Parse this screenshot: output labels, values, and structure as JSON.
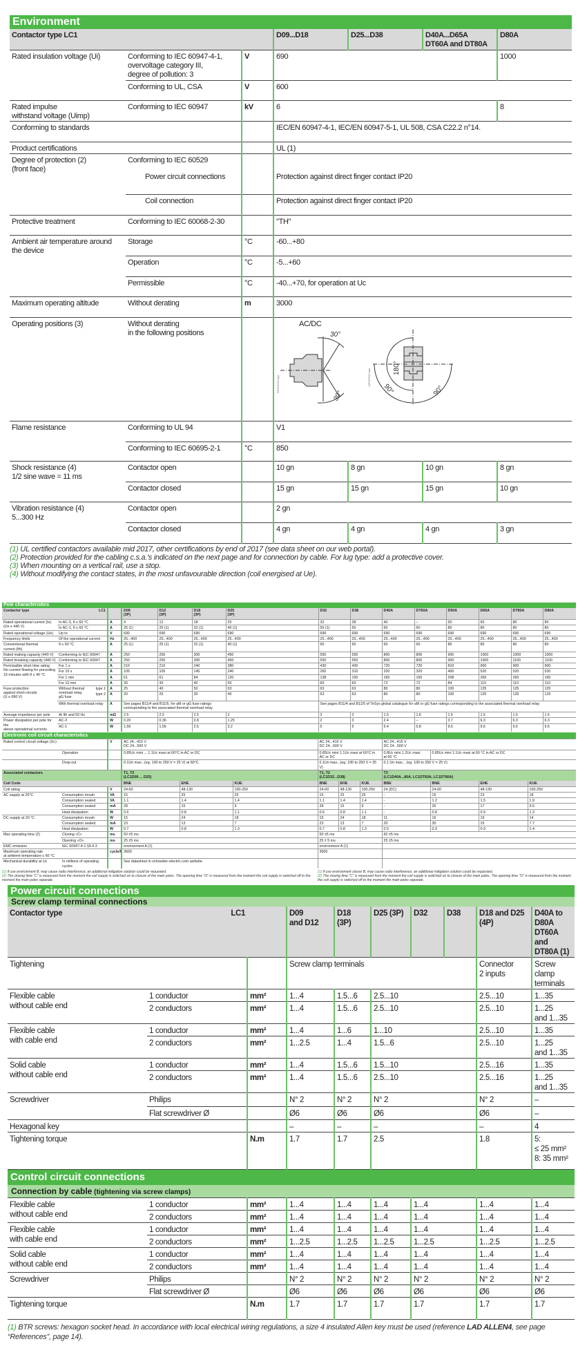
{
  "env": {
    "title": "Environment",
    "header": [
      [
        "Contactor type LC1",
        "D09...D18",
        "D25...D38",
        "D40A...D65A\nDT60A and DT80A",
        "D80A"
      ]
    ],
    "rows": [
      [
        "Rated insulation voltage (Ui)",
        "Conforming to IEC 60947-4-1,\novervoltage category III,\ndegree of pollution: 3",
        "V",
        "690",
        "1000"
      ],
      [
        "Conforming to UL, CSA",
        "V",
        "600"
      ],
      [
        "Rated impulse\nwithstand voltage (Uimp)",
        "Conforming to IEC 60947",
        "kV",
        "6",
        "8"
      ],
      [
        "Conforming to standards",
        "",
        "IEC/EN 60947-4-1, IEC/EN 60947-5-1, UL 508, CSA C22.2 n°14."
      ],
      [
        "Product certifications",
        "",
        "UL (1)"
      ],
      [
        "Degree of protection (2)\n(front face)",
        "Conforming to IEC 60529",
        "",
        ""
      ],
      [
        "Power circuit connections",
        "",
        "Protection against direct finger contact IP20"
      ],
      [
        "Coil connection",
        "",
        "Protection against direct finger contact IP20"
      ],
      [
        "Protective treatment",
        "Conforming to IEC 60068-2-30",
        "",
        "\"TH\""
      ],
      [
        "Ambient air temperature around\nthe device",
        "Storage",
        "°C",
        "-60...+80"
      ],
      [
        "Operation",
        "°C",
        "-5...+60"
      ],
      [
        "Permissible",
        "°C",
        "-40...+70, for operation at Uc"
      ],
      [
        "Maximum operating altitude",
        "Without derating",
        "m",
        "3000"
      ],
      [
        "Operating positions (3)",
        "Without derating\nin the following positions",
        "",
        "AC/DC"
      ],
      [
        "Flame resistance",
        "Conforming to UL 94",
        "",
        "V1"
      ],
      [
        "Conforming to IEC 60695-2-1",
        "°C",
        "850"
      ],
      [
        "Shock resistance (4)\n1/2 sine wave = 11 ms",
        "Contactor open",
        "",
        "10 gn",
        "8 gn",
        "10 gn",
        "8 gn"
      ],
      [
        "Contactor closed",
        "",
        "15 gn",
        "15 gn",
        "15 gn",
        "10 gn"
      ],
      [
        "Vibration resistance (4)\n5...300 Hz",
        "Contactor open",
        "",
        "2 gn"
      ],
      [
        "Contactor closed",
        "",
        "4 gn",
        "4 gn",
        "4 gn",
        "3 gn"
      ]
    ],
    "diagram": {
      "figure_ids": [
        "DF510743.eps",
        "DF537612.eps"
      ],
      "angles": [
        "30°",
        "30°",
        "180°",
        "90°",
        "90°"
      ]
    },
    "footnotes": [
      {
        "num": "(1)",
        "text": " UL certified contactors available mid 2017, other certifications by end of 2017 (see data sheet on our web portal)."
      },
      {
        "num": "(2)",
        "text": " Protection provided for the cabling c.s.a.'s indicated on the next page and for connection by cable. For lug type: add a protective cover."
      },
      {
        "num": "(3)",
        "text": " When mounting on a vertical rail, use a stop."
      },
      {
        "num": "(4)",
        "text": " Without modifying the contact states, in the most unfavourable direction (coil energised at Ue)."
      }
    ]
  },
  "pole": {
    "title": "Pole characteristics",
    "fuse_types": [
      "type 1",
      "type 2"
    ],
    "header": [
      [
        "Contactor type",
        "LC1",
        "",
        "D09\n(3P)",
        "D12\n(3P)",
        "D18\n(3P)",
        "D25\n(3P)",
        "D32",
        "D38",
        "D40A",
        "DT60A",
        "D50A",
        "D65A",
        "DT80A",
        "D80A"
      ]
    ],
    "rows": [
      [
        "Rated operational current (Ie)\n(Ue ≤ 440 V)",
        "In AC-3, θ ≤ 60 °C",
        "A",
        "9",
        "12",
        "18",
        "25",
        "32",
        "38",
        "40",
        "–",
        "50",
        "65",
        "80",
        "80"
      ],
      [
        "In AC-1, θ ≤ 60 °C",
        "A",
        "25 (1)",
        "25 (1)",
        "32 (1)",
        "40 (1)",
        "50 (1)",
        "50",
        "60",
        "60",
        "80",
        "80",
        "80",
        "80"
      ],
      [
        "Rated operational voltage (Ue)",
        "Up to",
        "V",
        "690",
        "690",
        "690",
        "690",
        "690",
        "690",
        "690",
        "690",
        "690",
        "690",
        "690",
        "690"
      ],
      [
        "Frequency limits",
        "Of the operational current",
        "Hz",
        "25...400",
        "25...400",
        "25...400",
        "25...400",
        "25...400",
        "25...400",
        "25...400",
        "25...400",
        "25...400",
        "25...400",
        "25...400",
        "25...400"
      ],
      [
        "Conventional thermal\ncurrent (Ith)",
        "θ ≤ 60 °C",
        "A",
        "25 (1)",
        "25 (1)",
        "32 (1)",
        "40 (1)",
        "50",
        "50",
        "60",
        "60",
        "80",
        "80",
        "80",
        "80"
      ],
      [
        "Rated making capacity (440 V)",
        "Conforming to IEC 60947",
        "A",
        "250",
        "250",
        "300",
        "450",
        "550",
        "550",
        "800",
        "800",
        "900",
        "1000",
        "1000",
        "1000"
      ],
      [
        "Rated breaking capacity (440 V)",
        "Conforming to IEC 60947",
        "A",
        "250",
        "250",
        "300",
        "450",
        "550",
        "550",
        "800",
        "800",
        "900",
        "1000",
        "1100",
        "1100"
      ],
      [
        "Permissible short time rating\nNo current flowing for preceding\n15 minutes with θ ≤ 40 °C",
        "For 1 s",
        "A",
        "210",
        "210",
        "240",
        "380",
        "430",
        "430",
        "720",
        "720",
        "810",
        "900",
        "900",
        "900"
      ],
      [
        "For 10 s",
        "A",
        "105",
        "105",
        "145",
        "240",
        "260",
        "310",
        "320",
        "320",
        "400",
        "520",
        "520",
        "520"
      ],
      [
        "For 1 min",
        "A",
        "61",
        "61",
        "84",
        "120",
        "138",
        "150",
        "165",
        "165",
        "208",
        "260",
        "260",
        "160"
      ],
      [
        "For 10 min",
        "A",
        "30",
        "30",
        "40",
        "50",
        "60",
        "60",
        "72",
        "72",
        "84",
        "110",
        "110",
        "110"
      ],
      [
        "Fuse protection\nagainst short-circuits\n(U ≤ 690 V)",
        "Without thermal\noverload relay,\ngG fuse",
        "A",
        "25",
        "40",
        "50",
        "63",
        "63",
        "63",
        "80",
        "80",
        "100",
        "125",
        "125",
        "125"
      ],
      [
        "A",
        "20",
        "25",
        "35",
        "40",
        "63",
        "63",
        "80",
        "80",
        "100",
        "125",
        "125",
        "125"
      ],
      [
        "With thermal overload relay",
        "A",
        "See pages B11/4 and B11/5, for aM or gG fuse ratings\ncorresponding to the associated thermal overload relay",
        "See pages B11/4 and B11/5 of TeSys global catalogue for aM or gG fuse ratings corresponding to the associated thermal overload relay"
      ],
      [
        "Average impedance per pole",
        "At Ith and 50 Hz",
        "mΩ",
        "2.5",
        "2.5",
        "2.5",
        "2",
        "2",
        "2",
        "1.5",
        "1.6",
        "1.5",
        "1.5",
        "1.5",
        "1.5"
      ],
      [
        "Power dissipation per pole for the\nabove operational currents",
        "AC-3",
        "W",
        "0.20",
        "0.36",
        "0.8",
        "1.25",
        "2",
        "3",
        "2.4",
        "–",
        "3.7",
        "6.3",
        "6.3",
        "6.3"
      ],
      [
        "AC-1",
        "W",
        "1.56",
        "1.56",
        "2.5",
        "3.2",
        "5",
        "5",
        "5.4",
        "5.8",
        "9.6",
        "9.6",
        "9.6",
        "9.6"
      ]
    ]
  },
  "coil": {
    "title": "Electronic coil circuit characteristics",
    "rows": [
      [
        "Rated control circuit voltage (Uc)",
        "V",
        "AC 24...415 V\nDC 24...500 V",
        "AC 24...415 V\nDC 24...500 V",
        "AC 24...415 V\nDC 24...500 V"
      ],
      [
        "",
        "Operation",
        "",
        "0.85Uc mini ... 1.1Uc maxi at 60°C in AC or DC",
        "0.85Uc mini 1.1Uc maxi at 60°C in\nAC or DC",
        "0.8Uc mini 1.2Uc maxi\nat 60 °C",
        "0.85Uc mini 1.1Uc maxi at 60 °C in AC or DC"
      ],
      [
        "",
        "Drop-out",
        "",
        "0.1Un max...(eg. 100 to 250 V = 25 V) at 60°C",
        "0.1Un max...(eg. 100 to 250 V = 25 V)",
        "0.1 Un max... (eg. 100 to 250 V = 25 V)"
      ],
      [
        "Associated contactors",
        "T1, T2\n(LC1D09 ... D25)",
        "T1, T2\n(LC1D32...D38)",
        "T3\n(LC1D40A...80A, LC1DT60A, LC1DT80A)"
      ],
      [
        "Coil Code",
        "BNE",
        "EHE",
        "KUE",
        "BNE",
        "EHE",
        "KUE",
        "BBE",
        "BNE",
        "EHE",
        "KUE"
      ],
      [
        "Coil rating",
        "V",
        "24-60",
        "48-130",
        "100-250",
        "24-60",
        "48-130",
        "100-250",
        "24 (DC)",
        "24-60",
        "48-130",
        "100-250"
      ],
      [
        "AC supply at 20°C",
        "Consumption inrush",
        "VA",
        "15",
        "25",
        "25",
        "15",
        "25",
        "25",
        "-",
        "15",
        "23",
        "18"
      ],
      [
        "Consumption sealed",
        "VA",
        "1.1",
        "1.4",
        "1.4",
        "1.1",
        "1.4",
        "1.4",
        "-",
        "1.2",
        "1.5",
        "1.9"
      ],
      [
        "Consumption sealed",
        "mA",
        "28",
        "15",
        "9",
        "28",
        "15",
        "9",
        "-",
        "35",
        "17",
        "9.5"
      ],
      [
        "Heat dissipation",
        "W",
        "0.6",
        "0.8",
        "1.1",
        "0.6",
        "0.8",
        "1.1",
        "-",
        "0.8",
        "0.9",
        "1.3"
      ],
      [
        "DC supply at 20 °C",
        "Consumption inrush",
        "W",
        "15",
        "24",
        "18",
        "15",
        "24",
        "18",
        "11",
        "16",
        "19",
        "14"
      ],
      [
        "Consumption sealed",
        "mA",
        "23",
        "13",
        "7",
        "23",
        "13",
        "7",
        "20",
        "30",
        "15",
        "7.7"
      ],
      [
        "Heat dissipation",
        "W",
        "0.7",
        "0.8",
        "1.3",
        "0.7",
        "0.8",
        "1.3",
        "0.5",
        "0.9",
        "0.9",
        "1.4"
      ],
      [
        "Max operating time (2)",
        "Closing «C»",
        "ms",
        "50 ±5 ms",
        "50 ±5 ms",
        "60 ±5 ms"
      ],
      [
        "Opening «O»",
        "ms",
        "25 ±5 ms",
        "25 ± 5 ms",
        "25 ±5 ms"
      ],
      [
        "EMC emission",
        "IEC 60947-4-1 §9.4.3",
        "",
        "environment A (1)",
        "environment A (1)",
        ""
      ],
      [
        "Maximum operating rate\nat ambient temperature ≤ 60 °C",
        "cycle/h",
        "3600",
        "3600",
        ""
      ],
      [
        "Mechanical durability at Uc",
        "In millions of operating\ncycles",
        "",
        "See datasheet in schneider-electric.com website.",
        "",
        ""
      ]
    ],
    "footnotes_left": [
      {
        "num": "(1)",
        "text": " If use environment B, may cause radio interference, an additional mitigation solution could be requested."
      },
      {
        "num": "(2)",
        "text": " The closing time \"C\" is measured from the moment the coil supply is switched on to closure of the main poles. The opening time \"O\" is measured from the moment the coil supply is switched off to the moment the main poles separate."
      }
    ],
    "footnotes_right": [
      {
        "num": "(1)",
        "text": " If use environment classe B, may cause radio interference, an additional mitigation solution could be requested."
      },
      {
        "num": "(2)",
        "text": " The closing time \"C\" is measured from the moment the coil supply is switched on to closure of the main poles. The opening time \"O\" is measured from the moment the coil supply is switched off to the moment the main poles separate."
      }
    ]
  },
  "power": {
    "title": "Power circuit connections",
    "subtitle": "Screw clamp terminal connections",
    "header": [
      [
        "Contactor type",
        "LC1",
        "",
        "D09\nand D12",
        "D18\n(3P)",
        "D25 (3P)",
        "D32",
        "D38",
        "D18 and D25\n(4P)",
        "D40A to\nD80A\nDT60A and\nDT80A (1)"
      ]
    ],
    "rows": [
      [
        "Tightening",
        "",
        "Screw clamp terminals",
        "Connector\n2 inputs",
        "Screw clamp\nterminals"
      ],
      [
        "Flexible cable\nwithout cable end",
        "1 conductor",
        "mm²",
        "1...4",
        "1.5...6",
        "2.5...10",
        "2.5...10",
        "1...35"
      ],
      [
        "2 conductors",
        "mm²",
        "1...4",
        "1.5...6",
        "2.5...10",
        "2.5...10",
        "1...25\nand 1...35"
      ],
      [
        "Flexible cable\nwith cable end",
        "1 conductor",
        "mm²",
        "1...4",
        "1...6",
        "1...10",
        "2.5...10",
        "1...35"
      ],
      [
        "2 conductors",
        "mm²",
        "1...2.5",
        "1...4",
        "1.5...6",
        "2.5...10",
        "1...25\nand 1...35"
      ],
      [
        "Solid cable\nwithout cable end",
        "1 conductor",
        "mm²",
        "1...4",
        "1.5...6",
        "1.5...10",
        "2.5...16",
        "1...35"
      ],
      [
        "2 conductors",
        "mm²",
        "1...4",
        "1.5...6",
        "2.5...10",
        "2.5...16",
        "1...25\nand 1...35"
      ],
      [
        "Screwdriver",
        "Philips",
        "",
        "N° 2",
        "N° 2",
        "N° 2",
        "N° 2",
        "–"
      ],
      [
        "Flat screwdriver Ø",
        "",
        "Ø6",
        "Ø6",
        "Ø6",
        "Ø6",
        "–"
      ],
      [
        "Hexagonal key",
        "",
        "–",
        "–",
        "–",
        "–",
        "4"
      ],
      [
        "Tightening torque",
        "N.m",
        "1.7",
        "1.7",
        "2.5",
        "1.8",
        "5:\n≤ 25 mm²\n8: 35 mm²"
      ]
    ]
  },
  "control": {
    "title": "Control circuit connections",
    "subtitle": "Connection by cable",
    "subtitle_note": " (tightening via screw clamps)",
    "rows": [
      [
        "Flexible cable\nwithout cable end",
        "1 conductor",
        "mm²",
        "1...4",
        "1...4",
        "1...4",
        "1...4",
        "1...4",
        "1...4"
      ],
      [
        "2 conductors",
        "mm²",
        "1...4",
        "1...4",
        "1...4",
        "1...4",
        "1...4",
        "1...4"
      ],
      [
        "Flexible cable\nwith cable end",
        "1 conductor",
        "mm²",
        "1...4",
        "1...4",
        "1...4",
        "1...4",
        "1...4",
        "1...4"
      ],
      [
        "2 conductors",
        "mm²",
        "1...2.5",
        "1...2.5",
        "1...2.5",
        "1...2.5",
        "1...2.5",
        "1...2.5"
      ],
      [
        "Solid cable\nwithout cable end",
        "1 conductor",
        "mm²",
        "1...4",
        "1...4",
        "1...4",
        "1...4",
        "1...4",
        "1...4"
      ],
      [
        "2 conductors",
        "mm²",
        "1...4",
        "1...4",
        "1...4",
        "1...4",
        "1...4",
        "1...4"
      ],
      [
        "Screwdriver",
        "Philips",
        "",
        "N° 2",
        "N° 2",
        "N° 2",
        "N° 2",
        "N° 2",
        "N° 2"
      ],
      [
        "Flat screwdriver Ø",
        "",
        "Ø6",
        "Ø6",
        "Ø6",
        "Ø6",
        "Ø6",
        "Ø6"
      ],
      [
        "Tightening torque",
        "N.m",
        "1.7",
        "1.7",
        "1.7",
        "1.7",
        "1.7",
        "1.7"
      ]
    ],
    "footnote": {
      "num": "(1)",
      "text_before": " BTR screws: hexagon socket head. In accordance with local electrical wiring regulations, a size 4 insulated Allen key must be used (reference ",
      "text_bold": "LAD ALLEN4",
      "text_after": ", see page “References”, page 14)."
    }
  },
  "colors": {
    "heading_green": "#4db848",
    "subheading_green": "#a9dba0",
    "header_gray": "#d9d9d9",
    "rule_green": "#6cbf66"
  }
}
